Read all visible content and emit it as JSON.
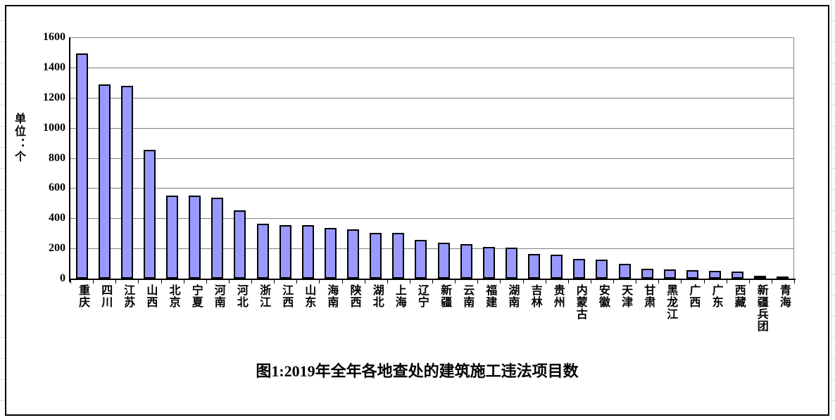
{
  "chart_data": {
    "type": "bar",
    "title": "图1:2019年全年各地查处的建筑施工违法项目数",
    "ylabel": "单位：个",
    "xlabel": "",
    "ylim": [
      0,
      1600
    ],
    "ytick_interval": 200,
    "grid": true,
    "legend": "none",
    "categories": [
      "重庆",
      "四川",
      "江苏",
      "山西",
      "北京",
      "宁夏",
      "河南",
      "河北",
      "浙江",
      "江西",
      "山东",
      "海南",
      "陕西",
      "湖北",
      "上海",
      "辽宁",
      "新疆",
      "云南",
      "福建",
      "湖南",
      "吉林",
      "贵州",
      "内蒙古",
      "安徽",
      "天津",
      "甘肃",
      "黑龙江",
      "广西",
      "广东",
      "西藏",
      "新疆兵团",
      "青海"
    ],
    "values": [
      1495,
      1290,
      1280,
      855,
      550,
      550,
      535,
      455,
      365,
      355,
      355,
      335,
      325,
      305,
      305,
      255,
      240,
      230,
      210,
      205,
      165,
      160,
      130,
      128,
      100,
      65,
      62,
      56,
      52,
      46,
      18,
      13
    ]
  },
  "colors": {
    "bar_fill": "#9999FF",
    "bar_border": "#000000",
    "gridline": "#808080",
    "axis": "#000000",
    "background": "#FFFFFF",
    "frame_border": "#000000",
    "worksheet_line": "#D9D9D9"
  }
}
